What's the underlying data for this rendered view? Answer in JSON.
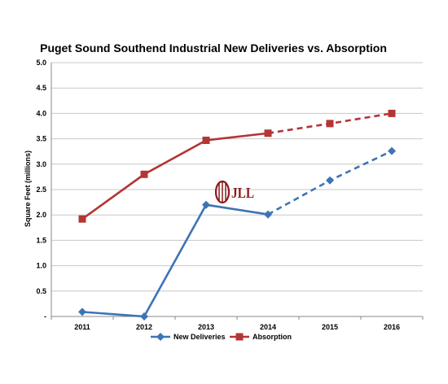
{
  "chart_data": {
    "type": "line",
    "title": "Puget Sound Southend Industrial New Deliveries vs. Absorption",
    "ylabel": "Square Feet (millions)",
    "xlabel": "",
    "categories": [
      "2011",
      "2012",
      "2013",
      "2014",
      "2015",
      "2016"
    ],
    "ylim": [
      0,
      5.0
    ],
    "yticks": [
      "-",
      "0.5",
      "1.0",
      "1.5",
      "2.0",
      "2.5",
      "3.0",
      "3.5",
      "4.0",
      "4.5",
      "5.0"
    ],
    "grid": true,
    "legend_position": "bottom",
    "forecast_from": "2014",
    "series": [
      {
        "name": "New Deliveries",
        "values": [
          0.09,
          0.0,
          2.2,
          2.01,
          2.68,
          3.26
        ],
        "color": "#3d74b5",
        "marker": "diamond"
      },
      {
        "name": "Absorption",
        "values": [
          1.92,
          2.8,
          3.47,
          3.61,
          3.8,
          4.0
        ],
        "color": "#b53434",
        "marker": "square"
      }
    ]
  },
  "logo": {
    "text": "JLL",
    "color": "#8b1a1a"
  }
}
